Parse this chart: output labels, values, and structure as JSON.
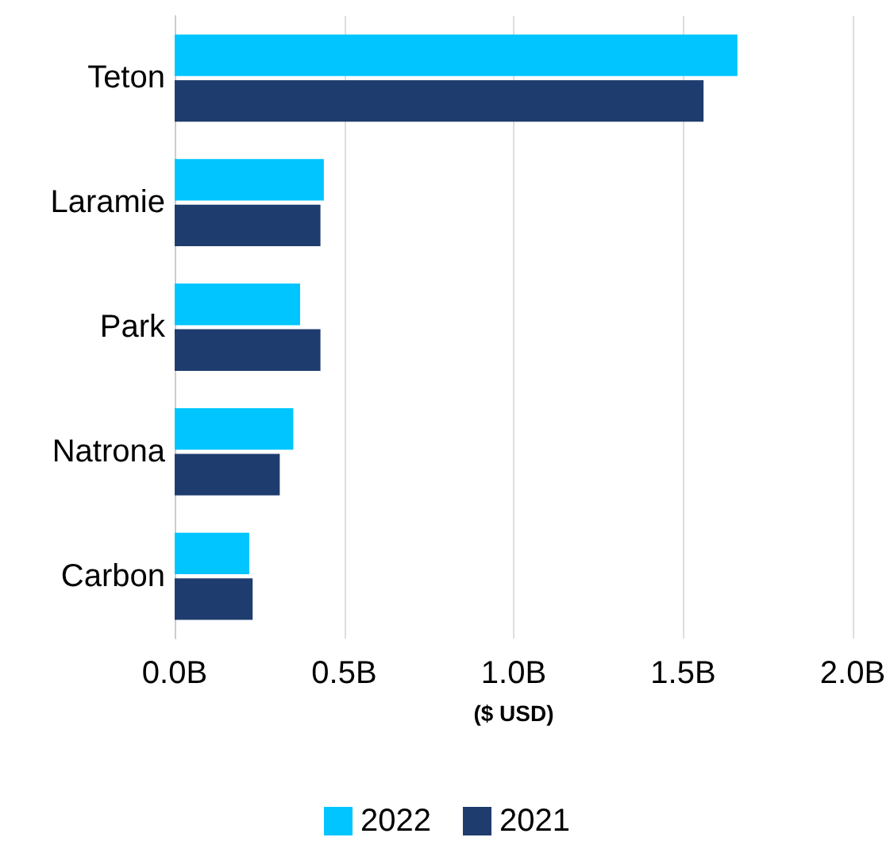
{
  "chart_data": {
    "type": "bar",
    "orientation": "horizontal",
    "xlabel": "($ USD)",
    "categories": [
      "Teton",
      "Laramie",
      "Park",
      "Natrona",
      "Carbon"
    ],
    "series": [
      {
        "name": "2022",
        "color": "#00c5ff",
        "values": [
          1.66,
          0.44,
          0.37,
          0.35,
          0.22
        ]
      },
      {
        "name": "2021",
        "color": "#1f3c6e",
        "values": [
          1.56,
          0.43,
          0.43,
          0.31,
          0.23
        ]
      }
    ],
    "xlim": [
      0,
      2
    ],
    "xticks": [
      {
        "value": 0,
        "label": "0.0B"
      },
      {
        "value": 0.5,
        "label": "0.5B"
      },
      {
        "value": 1,
        "label": "1.0B"
      },
      {
        "value": 1.5,
        "label": "1.5B"
      },
      {
        "value": 2,
        "label": "2.0B"
      }
    ],
    "grid": "x",
    "legend": "bottom"
  }
}
